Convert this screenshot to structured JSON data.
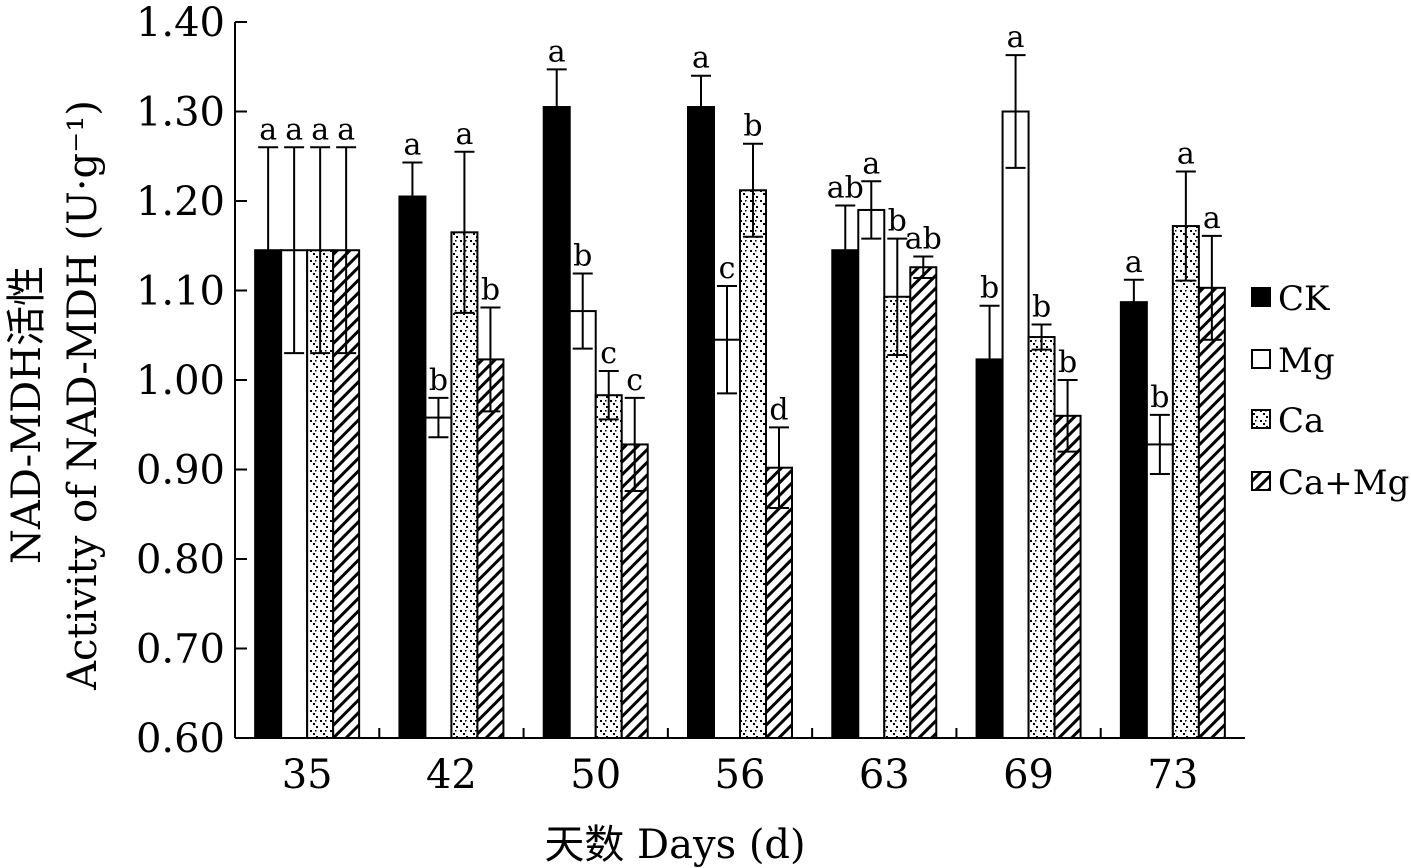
{
  "chart_data": {
    "type": "bar",
    "categories": [
      "35",
      "42",
      "50",
      "56",
      "63",
      "69",
      "73"
    ],
    "xlabel": "天数  Days (d)",
    "ylabel_line1": "NAD-MDH活性",
    "ylabel_line2": "Activity of NAD-MDH (U·g⁻¹)",
    "ylim": [
      0.6,
      1.4
    ],
    "yticks": [
      "0.60",
      "0.70",
      "0.80",
      "0.90",
      "1.00",
      "1.10",
      "1.20",
      "1.30",
      "1.40"
    ],
    "legend_position": "right",
    "grid": false,
    "series": [
      {
        "name": "CK",
        "values": [
          1.145,
          1.205,
          1.305,
          1.305,
          1.145,
          1.023,
          1.087
        ],
        "errors": [
          0.115,
          0.038,
          0.042,
          0.035,
          0.05,
          0.06,
          0.025
        ],
        "letters": [
          "a",
          "a",
          "a",
          "a",
          "ab",
          "b",
          "a"
        ]
      },
      {
        "name": "Mg",
        "values": [
          1.145,
          0.958,
          1.077,
          1.045,
          1.19,
          1.3,
          0.928
        ],
        "errors": [
          0.115,
          0.022,
          0.042,
          0.06,
          0.032,
          0.063,
          0.033
        ],
        "letters": [
          "a",
          "b",
          "b",
          "c",
          "a",
          "a",
          "b"
        ]
      },
      {
        "name": "Ca",
        "values": [
          1.145,
          1.165,
          0.983,
          1.212,
          1.093,
          1.048,
          1.172
        ],
        "errors": [
          0.115,
          0.09,
          0.027,
          0.052,
          0.065,
          0.014,
          0.061
        ],
        "letters": [
          "a",
          "a",
          "c",
          "b",
          "b",
          "b",
          "a"
        ]
      },
      {
        "name": "Ca+Mg",
        "values": [
          1.145,
          1.023,
          0.928,
          0.902,
          1.126,
          0.96,
          1.103
        ],
        "errors": [
          0.115,
          0.058,
          0.052,
          0.045,
          0.012,
          0.04,
          0.058
        ],
        "letters": [
          "a",
          "b",
          "c",
          "d",
          "ab",
          "b",
          "a"
        ]
      }
    ]
  }
}
